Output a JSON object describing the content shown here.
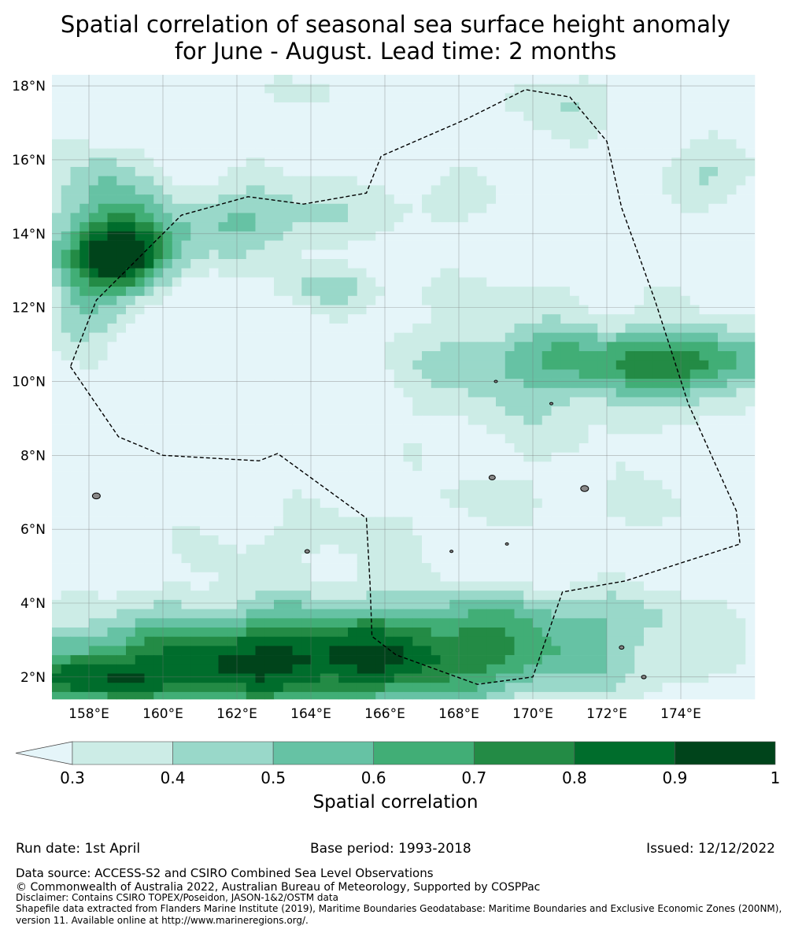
{
  "title": {
    "line1": "Spatial correlation of seasonal sea surface height anomaly",
    "line2": "for June - August. Lead time: 2 months"
  },
  "map": {
    "lon_range": [
      157.0,
      176.0
    ],
    "lat_range": [
      1.4,
      18.3
    ],
    "lon_ticks": [
      "158°E",
      "160°E",
      "162°E",
      "164°E",
      "166°E",
      "168°E",
      "170°E",
      "172°E",
      "174°E"
    ],
    "lat_ticks": [
      "18°N",
      "16°N",
      "14°N",
      "12°N",
      "10°N",
      "8°N",
      "6°N",
      "4°N",
      "2°N"
    ],
    "grid": true,
    "eez_boundary": "dashed"
  },
  "colorbar": {
    "ticks": [
      "0.3",
      "0.4",
      "0.5",
      "0.6",
      "0.7",
      "0.8",
      "0.9",
      "1"
    ],
    "label": "Spatial correlation",
    "below_color": "#e5f5f9",
    "colors": [
      "#ccece6",
      "#99d8c9",
      "#66c2a4",
      "#41ae76",
      "#238b45",
      "#006d2c",
      "#00441b"
    ]
  },
  "footer": {
    "run_date": "Run date: 1st April",
    "base_period": "Base period: 1993-2018",
    "issued": "Issued: 12/12/2022",
    "data_source": "Data source: ACCESS-S2 and CSIRO Combined Sea Level Observations",
    "copyright": "© Commonwealth of Australia 2022, Australian Bureau of Meteorology, Supported by COSPPac",
    "disclaimer": "Disclaimer: Contains CSIRO TOPEX/Poseidon, JASON-1&2/OSTM data",
    "shapefile": "Shapefile data extracted from Flanders Marine Institute (2019), Maritime Boundaries Geodatabase: Maritime Boundaries and Exclusive Economic Zones (200NM),",
    "version": "version 11. Available online at http://www.marineregions.org/."
  }
}
